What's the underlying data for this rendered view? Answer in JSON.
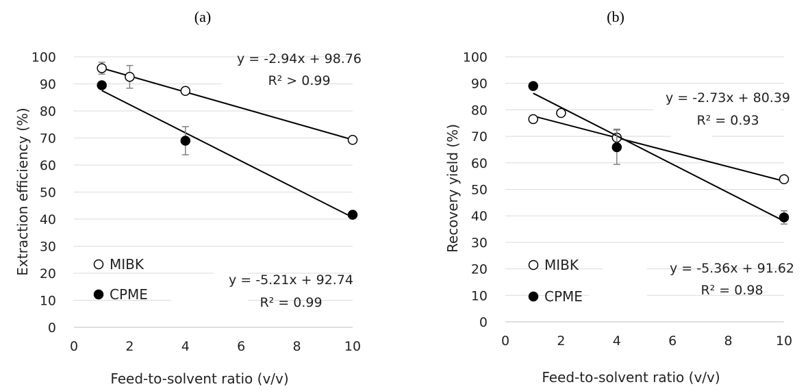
{
  "chart_data": [
    {
      "type": "scatter",
      "panel_label": "(a)",
      "ylabel": "Extraction efficiency (%)",
      "xlabel": "Feed-to-solvent ratio (v/v)",
      "xlim": [
        0,
        10
      ],
      "ylim": [
        0,
        100
      ],
      "x_ticks": [
        "0",
        "2",
        "4",
        "6",
        "8",
        "10"
      ],
      "y_ticks": [
        "0",
        "10",
        "20",
        "30",
        "40",
        "50",
        "60",
        "70",
        "80",
        "90",
        "100"
      ],
      "grid": "horizontal",
      "legend_position": "bottom-left",
      "series": [
        {
          "name": "MIBK",
          "marker": "open-circle",
          "x": [
            1,
            2,
            4,
            10
          ],
          "y": [
            95.8,
            92.6,
            87.4,
            69.3
          ],
          "error": [
            2.2,
            4.2,
            0,
            0
          ],
          "trendline": {
            "slope": -2.94,
            "intercept": 98.76,
            "equation": "y = -2.94x + 98.76",
            "r2": "R² > 0.99"
          }
        },
        {
          "name": "CPME",
          "marker": "filled-circle",
          "x": [
            1,
            4,
            10
          ],
          "y": [
            89.5,
            69.0,
            41.6
          ],
          "error": [
            0,
            5.2,
            0
          ],
          "trendline": {
            "slope": -5.21,
            "intercept": 92.74,
            "equation": "y = -5.21x + 92.74",
            "r2": "R² = 0.99"
          }
        }
      ]
    },
    {
      "type": "scatter",
      "panel_label": "(b)",
      "ylabel": "Recovery yield (%)",
      "xlabel": "Feed-to-solvent ratio (v/v)",
      "xlim": [
        0,
        10
      ],
      "ylim": [
        0,
        100
      ],
      "x_ticks": [
        "0",
        "2",
        "4",
        "6",
        "8",
        "10"
      ],
      "y_ticks": [
        "0",
        "10",
        "20",
        "30",
        "40",
        "50",
        "60",
        "70",
        "80",
        "90",
        "100"
      ],
      "grid": "horizontal",
      "legend_position": "bottom-left",
      "series": [
        {
          "name": "MIBK",
          "marker": "open-circle",
          "x": [
            1,
            2,
            4,
            10
          ],
          "y": [
            76.5,
            78.8,
            69.5,
            53.8
          ],
          "error": [
            0,
            0,
            3.2,
            0
          ],
          "trendline": {
            "slope": -2.73,
            "intercept": 80.39,
            "equation": "y = -2.73x + 80.39",
            "r2": "R² = 0.93"
          }
        },
        {
          "name": "CPME",
          "marker": "filled-circle",
          "x": [
            1,
            4,
            10
          ],
          "y": [
            89.0,
            65.9,
            39.4
          ],
          "error": [
            0,
            6.5,
            2.5
          ],
          "trendline": {
            "slope": -5.36,
            "intercept": 91.62,
            "equation": "y = -5.36x + 91.62",
            "r2": "R² = 0.98"
          }
        }
      ]
    }
  ]
}
